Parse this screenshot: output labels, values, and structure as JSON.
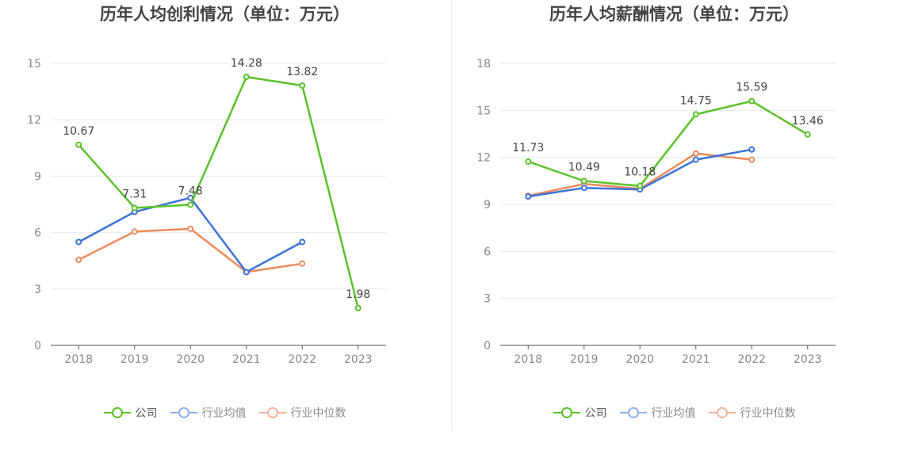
{
  "colors": {
    "company": "#5ac229",
    "industry_avg": "#3b73d9",
    "industry_median": "#ee8a5b",
    "legend_avg": "#8fb0ec",
    "legend_median": "#f6b59a",
    "grid": "#e6e8ef",
    "axis": "#555555"
  },
  "legend": {
    "company": "公司",
    "industry_avg": "行业均值",
    "industry_median": "行业中位数"
  },
  "chart_data": [
    {
      "type": "line",
      "title": "历年人均创利情况（单位：万元）",
      "categories": [
        "2018",
        "2019",
        "2020",
        "2021",
        "2022",
        "2023"
      ],
      "ylim": [
        0,
        15
      ],
      "yticks": [
        0,
        3,
        6,
        9,
        12,
        15
      ],
      "grid": true,
      "legend_position": "bottom",
      "series": [
        {
          "name": "公司",
          "values": [
            10.67,
            7.31,
            7.48,
            14.28,
            13.82,
            1.98
          ],
          "labels": [
            "10.67",
            "7.31",
            "7.48",
            "14.28",
            "13.82",
            "1.98"
          ]
        },
        {
          "name": "行业均值",
          "values": [
            5.5,
            7.1,
            7.85,
            3.9,
            5.5,
            null
          ]
        },
        {
          "name": "行业中位数",
          "values": [
            4.55,
            6.05,
            6.2,
            3.9,
            4.35,
            null
          ]
        }
      ]
    },
    {
      "type": "line",
      "title": "历年人均薪酬情况（单位：万元）",
      "categories": [
        "2018",
        "2019",
        "2020",
        "2021",
        "2022",
        "2023"
      ],
      "ylim": [
        0,
        18
      ],
      "yticks": [
        0,
        3,
        6,
        9,
        12,
        15,
        18
      ],
      "grid": true,
      "legend_position": "bottom",
      "series": [
        {
          "name": "公司",
          "values": [
            11.73,
            10.49,
            10.18,
            14.75,
            15.59,
            13.46
          ],
          "labels": [
            "11.73",
            "10.49",
            "10.18",
            "14.75",
            "15.59",
            "13.46"
          ]
        },
        {
          "name": "行业均值",
          "values": [
            9.5,
            10.05,
            9.95,
            11.85,
            12.5,
            null
          ]
        },
        {
          "name": "行业中位数",
          "values": [
            9.55,
            10.3,
            10.0,
            12.25,
            11.85,
            null
          ]
        }
      ]
    }
  ]
}
